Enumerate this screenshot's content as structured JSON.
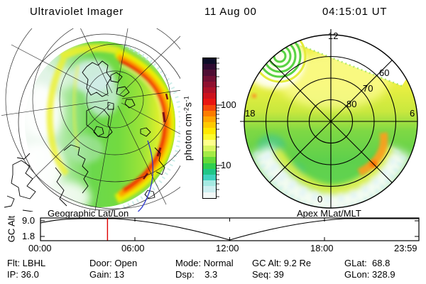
{
  "title": {
    "instrument": "Ultraviolet Imager",
    "date": "11 Aug 00",
    "time": "04:15:01 UT"
  },
  "colorbar": {
    "unit_label": {
      "base1": "photon cm",
      "sup1": "-2",
      "base2": "s",
      "sup2": "-1"
    },
    "tick_upper": "100",
    "tick_lower": "10",
    "scale": "log",
    "colors": [
      "#0b0b26",
      "#2e0930",
      "#4f0d33",
      "#700f33",
      "#8f102f",
      "#ad1128",
      "#cc121d",
      "#e81511",
      "#f4470a",
      "#fc7c00",
      "#ffa600",
      "#ffc900",
      "#ffe800",
      "#fbfb2d",
      "#ffff8c",
      "#d9f561",
      "#a3ea45",
      "#64da38",
      "#2fcf4e",
      "#1fc687",
      "#3ed2be",
      "#a5e9e2",
      "#cdeff0",
      "#f2f8f6"
    ]
  },
  "map_panel": {
    "caption": "Geographic Lat/Lon"
  },
  "polar_panel": {
    "caption": "Apex MLat/MLT",
    "mlt_top": "12",
    "mlt_left": "18",
    "mlt_right": "6",
    "mlt_bottom": "0",
    "lat_rings": [
      "60",
      "70",
      "80"
    ]
  },
  "timeline": {
    "ylabel": "GC Alt",
    "ytick_upper": "9.0",
    "ytick_lower": "1.8",
    "xticks": [
      "00:00",
      "06:00",
      "12:00",
      "18:00",
      "23:59"
    ]
  },
  "status": {
    "rows": [
      [
        "Flt: LBHL",
        "Door: Open",
        "Mode: Normal",
        "GC Alt: 9.2 Re",
        "GLat:  68.8"
      ],
      [
        "IP: 36.0",
        "Gain: 13",
        "Dsp:    3.3",
        "Seq: 39",
        "GLon: 328.9"
      ]
    ]
  },
  "chart_data": [
    {
      "type": "heatmap",
      "panel": "geographic-projection",
      "title": "Geographic Lat/Lon",
      "description": "UV auroral emission image projected onto geographic lat/lon map with coastlines and graticule",
      "features": [
        "green-yellow auroral emission over polar cap",
        "bright red-orange dayside limb arc along east edge",
        "dim white low-signal regions on west side",
        "blue terminator line lower right"
      ],
      "color_scale": {
        "label": "photon cm-2 s-1",
        "scale": "log",
        "ticks": [
          10,
          100
        ]
      }
    },
    {
      "type": "heatmap",
      "panel": "apex-magnetic-polar",
      "title": "Apex MLat/MLT",
      "rings_mlat": [
        80,
        70,
        60,
        50
      ],
      "mlt_spokes_deg": [
        0,
        45,
        90,
        135,
        180,
        225,
        270,
        315
      ],
      "mlt_labels_shown": [
        12,
        18,
        6,
        0
      ],
      "features": [
        "yellow dayside emission upper half",
        "green nightside emission",
        "orange auroral arc segment near 21-03 MLT around 62-68 MLat",
        "white/cyan low-signal band near midnight",
        "ring-shaped instrument artifact upper left",
        "no image data wedge upper right"
      ]
    },
    {
      "type": "line",
      "panel": "gc-alt-timeline",
      "ylabel": "GC Alt",
      "yticks": [
        9.0,
        1.8
      ],
      "x_hours": [
        0,
        2,
        4.25,
        6,
        8,
        10,
        12,
        14,
        16,
        18,
        20,
        22,
        23.98
      ],
      "y_re": [
        8.6,
        9.2,
        9.2,
        8.3,
        6.8,
        4.6,
        1.6,
        4.6,
        6.8,
        8.3,
        9.2,
        9.2,
        9.2
      ],
      "current_time_marker_hours": 4.25,
      "marker_color": "#dd0000",
      "xticks": [
        "00:00",
        "06:00",
        "12:00",
        "18:00",
        "23:59"
      ]
    }
  ]
}
